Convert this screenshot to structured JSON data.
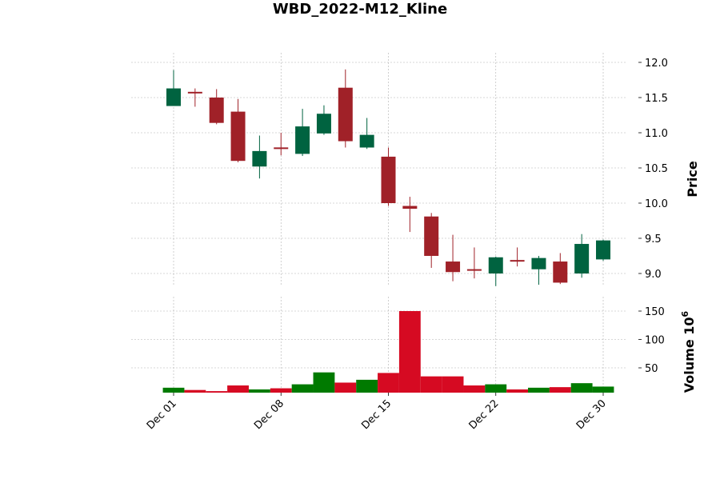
{
  "chart_data": {
    "type": "candlestick",
    "title": "WBD_2022-M12_Kline",
    "price_panel": {
      "ylabel": "Price",
      "ylim": [
        8.85,
        12.0
      ],
      "yticks": [
        9.0,
        9.5,
        10.0,
        10.5,
        11.0,
        11.5,
        12.0
      ],
      "ytick_labels": [
        "9.0",
        "9.5",
        "10.0",
        "10.5",
        "11.0",
        "11.5",
        "12.0"
      ],
      "grid": true
    },
    "volume_panel": {
      "ylabel": "Volume",
      "scale_label": "10",
      "scale_exponent": "6",
      "ylim": [
        0,
        165
      ],
      "yticks": [
        50,
        100,
        150
      ],
      "ytick_labels": [
        "50",
        "100",
        "150"
      ],
      "grid": true
    },
    "x_ticks": [
      {
        "index": 0,
        "label": "Dec 01"
      },
      {
        "index": 5,
        "label": "Dec 08"
      },
      {
        "index": 10,
        "label": "Dec 15"
      },
      {
        "index": 15,
        "label": "Dec 22"
      },
      {
        "index": 20,
        "label": "Dec 30"
      }
    ],
    "candles": [
      {
        "date": "2022-12-01",
        "open": 11.38,
        "high": 11.89,
        "low": 11.38,
        "close": 11.63,
        "volume": 15
      },
      {
        "date": "2022-12-02",
        "open": 11.57,
        "high": 11.63,
        "low": 11.37,
        "close": 11.55,
        "volume": 11
      },
      {
        "date": "2022-12-05",
        "open": 11.5,
        "high": 11.62,
        "low": 11.12,
        "close": 11.14,
        "volume": 9
      },
      {
        "date": "2022-12-06",
        "open": 11.3,
        "high": 11.48,
        "low": 10.58,
        "close": 10.6,
        "volume": 19
      },
      {
        "date": "2022-12-07",
        "open": 10.52,
        "high": 10.96,
        "low": 10.35,
        "close": 10.74,
        "volume": 12
      },
      {
        "date": "2022-12-08",
        "open": 10.78,
        "high": 11.0,
        "low": 10.68,
        "close": 10.76,
        "volume": 14
      },
      {
        "date": "2022-12-09",
        "open": 10.7,
        "high": 11.34,
        "low": 10.67,
        "close": 11.09,
        "volume": 21
      },
      {
        "date": "2022-12-12",
        "open": 10.99,
        "high": 11.39,
        "low": 10.97,
        "close": 11.27,
        "volume": 42
      },
      {
        "date": "2022-12-13",
        "open": 11.64,
        "high": 11.9,
        "low": 10.79,
        "close": 10.88,
        "volume": 24
      },
      {
        "date": "2022-12-14",
        "open": 10.79,
        "high": 11.21,
        "low": 10.77,
        "close": 10.97,
        "volume": 29
      },
      {
        "date": "2022-12-15",
        "open": 10.66,
        "high": 10.79,
        "low": 9.96,
        "close": 10.0,
        "volume": 41
      },
      {
        "date": "2022-12-16",
        "open": 9.96,
        "high": 10.09,
        "low": 9.59,
        "close": 9.92,
        "volume": 150
      },
      {
        "date": "2022-12-19",
        "open": 9.81,
        "high": 9.86,
        "low": 9.08,
        "close": 9.25,
        "volume": 35
      },
      {
        "date": "2022-12-20",
        "open": 9.17,
        "high": 9.55,
        "low": 8.89,
        "close": 9.02,
        "volume": 35
      },
      {
        "date": "2022-12-21",
        "open": 9.05,
        "high": 9.37,
        "low": 8.93,
        "close": 9.04,
        "volume": 19
      },
      {
        "date": "2022-12-22",
        "open": 9.0,
        "high": 9.24,
        "low": 8.82,
        "close": 9.23,
        "volume": 21
      },
      {
        "date": "2022-12-23",
        "open": 9.18,
        "high": 9.37,
        "low": 9.1,
        "close": 9.17,
        "volume": 12
      },
      {
        "date": "2022-12-27",
        "open": 9.06,
        "high": 9.25,
        "low": 8.84,
        "close": 9.22,
        "volume": 15
      },
      {
        "date": "2022-12-28",
        "open": 9.17,
        "high": 9.29,
        "low": 8.85,
        "close": 8.87,
        "volume": 16
      },
      {
        "date": "2022-12-29",
        "open": 9.0,
        "high": 9.56,
        "low": 8.94,
        "close": 9.42,
        "volume": 23
      },
      {
        "date": "2022-12-30",
        "open": 9.2,
        "high": 9.48,
        "low": 9.18,
        "close": 9.47,
        "volume": 17
      }
    ],
    "colors": {
      "up_candle": "#006340",
      "down_candle": "#a02128",
      "up_volume": "#007a00",
      "down_volume": "#d60a22",
      "grid": "#b0b0b0",
      "text": "#000000"
    }
  }
}
